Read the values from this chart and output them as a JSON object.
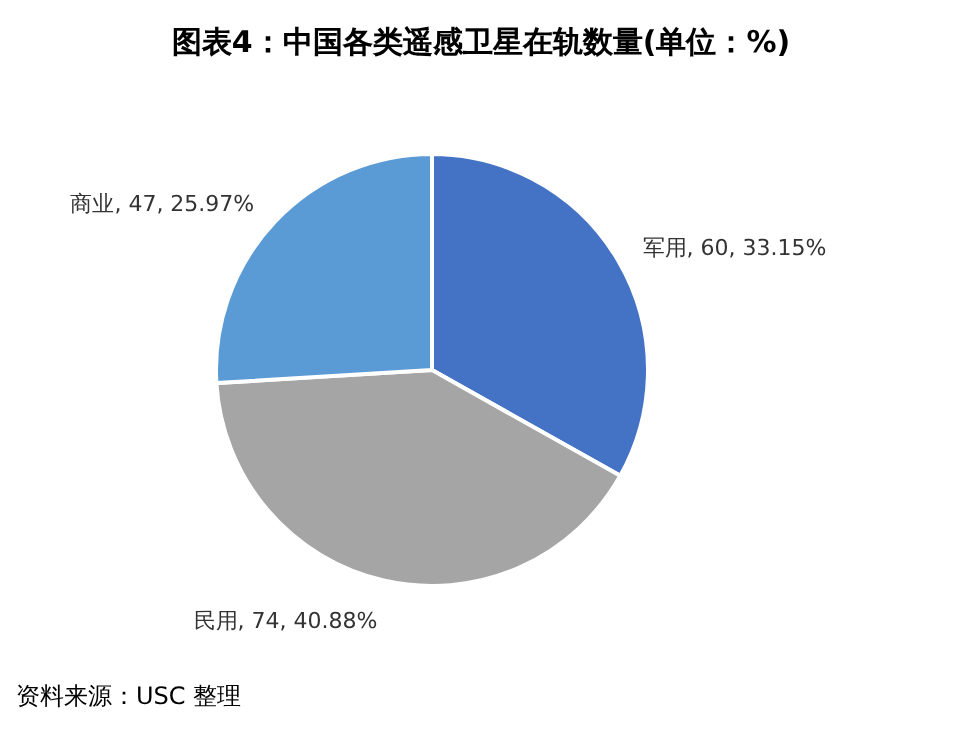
{
  "chart_data": {
    "type": "pie",
    "title": "图表4：中国各类遥感卫星在轨数量(单位：%)",
    "categories": [
      "军用",
      "民用",
      "商业"
    ],
    "values": [
      60,
      74,
      47
    ],
    "value_labels": [
      "60, 33.15%",
      "74, 40.88%",
      "47, 25.97%"
    ],
    "colors": [
      "#4472c4",
      "#a5a5a5",
      "#5b9bd5"
    ],
    "annotations": [
      "资料来源：USC 整理"
    ]
  }
}
